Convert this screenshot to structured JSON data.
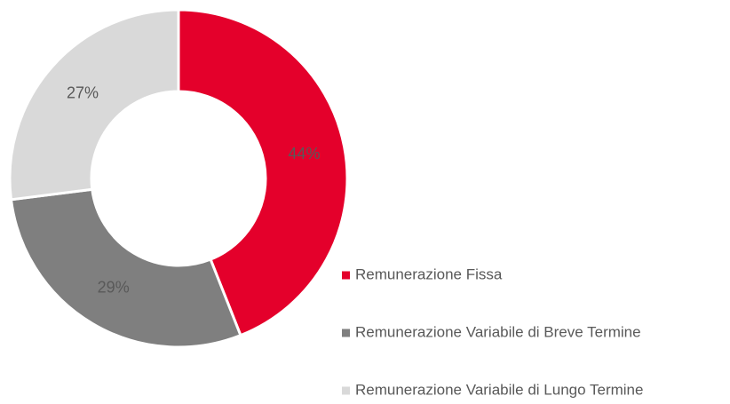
{
  "chart_data": {
    "type": "donut",
    "categories": [
      "Remunerazione Fissa",
      "Remunerazione Variabile di Breve Termine",
      "Remunerazione Variabile di Lungo Termine"
    ],
    "values": [
      44,
      29,
      27
    ],
    "value_labels": [
      "44%",
      "29%",
      "27%"
    ],
    "colors": [
      "#e4002b",
      "#7f7f7f",
      "#d9d9d9"
    ]
  }
}
